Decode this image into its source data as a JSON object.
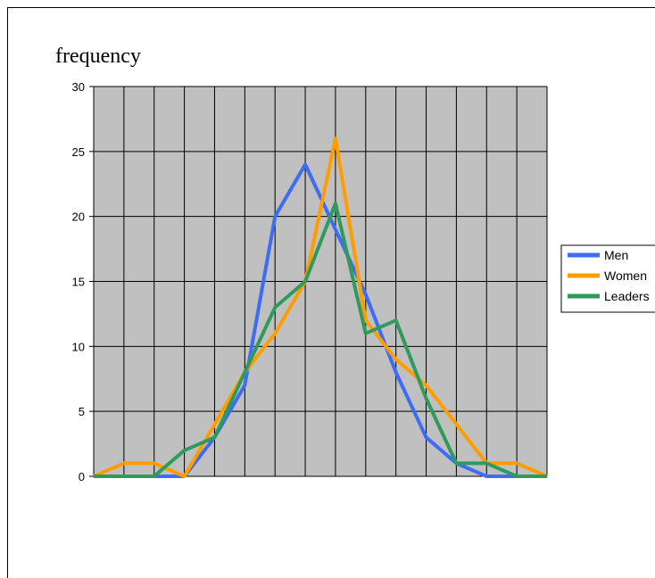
{
  "chart_data": {
    "type": "line",
    "ylabel": "frequency",
    "ylim": [
      0,
      30
    ],
    "yticks": [
      "0",
      "5",
      "10",
      "15",
      "20",
      "25",
      "30"
    ],
    "x": [
      0,
      1,
      2,
      3,
      4,
      5,
      6,
      7,
      8,
      9,
      10,
      11,
      12,
      13,
      14,
      15
    ],
    "grid": true,
    "background": "#c0c0c0",
    "legend_position": "right",
    "series": [
      {
        "name": "Men",
        "color": "#3d6cf5",
        "values": [
          0,
          0,
          0,
          0,
          3,
          7,
          20,
          24,
          19,
          14,
          8,
          3,
          1,
          0,
          0,
          0
        ]
      },
      {
        "name": "Women",
        "color": "#ff9d00",
        "values": [
          0,
          1,
          1,
          0,
          4,
          8,
          11,
          15,
          26,
          12,
          9,
          7,
          4,
          1,
          1,
          0
        ]
      },
      {
        "name": "Leaders",
        "color": "#2e9a5c",
        "values": [
          0,
          0,
          0,
          2,
          3,
          8,
          13,
          15,
          21,
          11,
          12,
          6,
          1,
          1,
          0,
          0
        ]
      }
    ]
  }
}
